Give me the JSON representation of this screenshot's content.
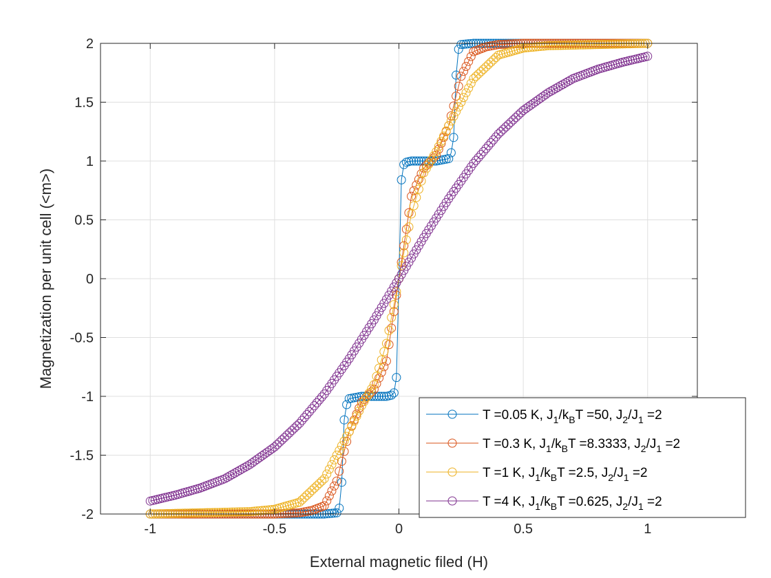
{
  "chart_data": {
    "type": "scatter",
    "xlabel": "External magnetic filed (H)",
    "ylabel": "Magnetization per unit cell (<m>)",
    "xlim": [
      -1.2,
      1.2
    ],
    "ylim": [
      -2,
      2
    ],
    "xticks": [
      "-1",
      "-0.5",
      "0",
      "0.5",
      "1"
    ],
    "yticks": [
      "-2",
      "-1.5",
      "-1",
      "-0.5",
      "0",
      "0.5",
      "1",
      "1.5",
      "2"
    ],
    "grid": true,
    "legend_position": "bottom-right",
    "x_range": [
      -1,
      1
    ],
    "points_per_series": 201,
    "series": [
      {
        "name": "T =0.05 K, J1/kBT =50, J2/J1 =2",
        "legend_parts": [
          "T =0.05 K, J",
          "1",
          "/k",
          "B",
          "T =50, J",
          "2",
          "/J",
          "1",
          " =2"
        ],
        "color": "#0072BD",
        "marker": "circle-open",
        "line": true,
        "x": [
          -1.0,
          -0.5,
          -0.3,
          -0.25,
          -0.24,
          -0.23,
          -0.22,
          -0.21,
          -0.2,
          -0.15,
          -0.1,
          -0.05,
          -0.03,
          -0.02,
          -0.01,
          0.0,
          0.01,
          0.02,
          0.03,
          0.05,
          0.1,
          0.15,
          0.2,
          0.21,
          0.22,
          0.23,
          0.24,
          0.25,
          0.3,
          0.5,
          1.0
        ],
        "y": [
          -2.0,
          -2.0,
          -2.0,
          -1.99,
          -1.95,
          -1.73,
          -1.2,
          -1.07,
          -1.02,
          -1.0,
          -1.0,
          -1.0,
          -0.99,
          -0.97,
          -0.84,
          0.0,
          0.84,
          0.97,
          0.99,
          1.0,
          1.0,
          1.0,
          1.02,
          1.07,
          1.2,
          1.73,
          1.95,
          1.99,
          2.0,
          2.0,
          2.0
        ]
      },
      {
        "name": "T =0.3 K, J1/kBT =8.3333, J2/J1 =2",
        "legend_parts": [
          "T =0.3 K, J",
          "1",
          "/k",
          "B",
          "T =8.3333, J",
          "2",
          "/J",
          "1",
          " =2"
        ],
        "color": "#D95319",
        "marker": "circle-open",
        "line": true,
        "x": [
          -1.0,
          -0.5,
          -0.4,
          -0.35,
          -0.3,
          -0.25,
          -0.2,
          -0.15,
          -0.1,
          -0.05,
          0.0,
          0.05,
          0.1,
          0.15,
          0.2,
          0.25,
          0.3,
          0.35,
          0.4,
          0.5,
          1.0
        ],
        "y": [
          -2.0,
          -2.0,
          -1.99,
          -1.97,
          -1.93,
          -1.72,
          -1.3,
          -1.05,
          -0.94,
          -0.7,
          0.0,
          0.7,
          0.94,
          1.05,
          1.3,
          1.72,
          1.93,
          1.97,
          1.99,
          2.0,
          2.0
        ]
      },
      {
        "name": "T =1 K, J1/kBT =2.5, J2/J1 =2",
        "legend_parts": [
          "T =1 K, J",
          "1",
          "/k",
          "B",
          "T =2.5, J",
          "2",
          "/J",
          "1",
          " =2"
        ],
        "color": "#EDB120",
        "marker": "circle-open",
        "line": true,
        "x": [
          -1.0,
          -0.8,
          -0.6,
          -0.5,
          -0.4,
          -0.3,
          -0.2,
          -0.15,
          -0.1,
          -0.05,
          0.0,
          0.05,
          0.1,
          0.15,
          0.2,
          0.3,
          0.4,
          0.5,
          0.6,
          0.8,
          1.0
        ],
        "y": [
          -2.0,
          -1.99,
          -1.98,
          -1.96,
          -1.9,
          -1.7,
          -1.3,
          -1.08,
          -0.9,
          -0.55,
          0.0,
          0.55,
          0.9,
          1.08,
          1.3,
          1.7,
          1.9,
          1.96,
          1.98,
          1.99,
          2.0
        ]
      },
      {
        "name": "T =4 K, J1/kBT =0.625, J2/J1 =2",
        "legend_parts": [
          "T =4 K, J",
          "1",
          "/k",
          "B",
          "T =0.625, J",
          "2",
          "/J",
          "1",
          " =2"
        ],
        "color": "#7E2F8E",
        "marker": "circle-open",
        "line": true,
        "x": [
          -1.0,
          -0.9,
          -0.8,
          -0.7,
          -0.6,
          -0.5,
          -0.4,
          -0.3,
          -0.2,
          -0.1,
          0.0,
          0.1,
          0.2,
          0.3,
          0.4,
          0.5,
          0.6,
          0.7,
          0.8,
          0.9,
          1.0
        ],
        "y": [
          -1.89,
          -1.84,
          -1.78,
          -1.7,
          -1.58,
          -1.43,
          -1.23,
          -0.98,
          -0.68,
          -0.35,
          0.0,
          0.35,
          0.68,
          0.98,
          1.23,
          1.43,
          1.58,
          1.7,
          1.78,
          1.84,
          1.89
        ]
      }
    ]
  }
}
